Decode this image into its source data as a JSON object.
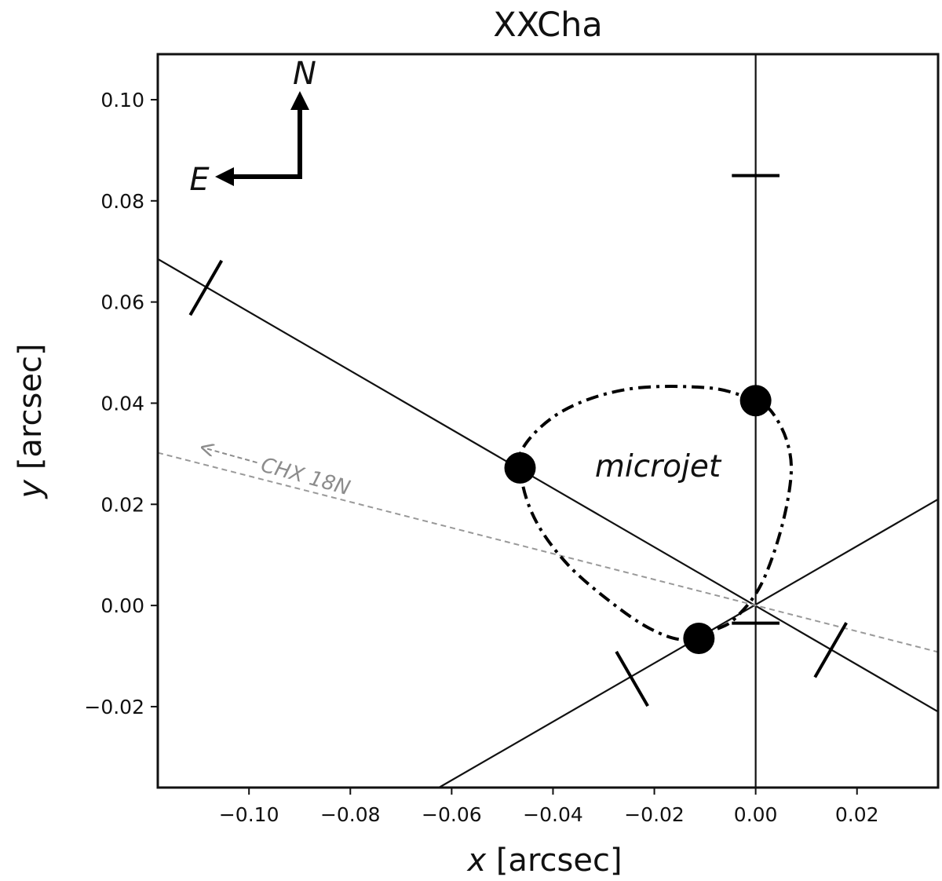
{
  "chart_data": {
    "type": "scatter",
    "title": "XXCha",
    "xlabel_var": "x",
    "xlabel_unit": "[arcsec]",
    "ylabel_var": "y",
    "ylabel_unit": "[arcsec]",
    "xlim": [
      -0.118,
      0.036
    ],
    "ylim": [
      -0.036,
      0.109
    ],
    "x_ticks": [
      -0.1,
      -0.08,
      -0.06,
      -0.04,
      -0.02,
      0.0,
      0.02
    ],
    "x_tick_labels": [
      "−0.10",
      "−0.08",
      "−0.06",
      "−0.04",
      "−0.02",
      "0.00",
      "0.02"
    ],
    "y_ticks": [
      -0.02,
      0.0,
      0.02,
      0.04,
      0.06,
      0.08,
      0.1
    ],
    "y_tick_labels": [
      "−0.02",
      "0.00",
      "0.02",
      "0.04",
      "0.06",
      "0.08",
      "0.10"
    ],
    "grid": false,
    "points": [
      {
        "x": 0.0,
        "y": 0.0405
      },
      {
        "x": -0.0465,
        "y": 0.0272
      },
      {
        "x": -0.0112,
        "y": -0.0065
      }
    ],
    "loop_path": [
      [
        0.0,
        0.0405
      ],
      [
        -0.009,
        0.043
      ],
      [
        -0.025,
        0.0428
      ],
      [
        -0.038,
        0.0385
      ],
      [
        -0.046,
        0.031
      ],
      [
        -0.046,
        0.024
      ],
      [
        -0.043,
        0.016
      ],
      [
        -0.037,
        0.008
      ],
      [
        -0.029,
        0.001
      ],
      [
        -0.021,
        -0.0045
      ],
      [
        -0.014,
        -0.0068
      ],
      [
        -0.008,
        -0.0048
      ],
      [
        -0.004,
        -0.0025
      ],
      [
        0.001,
        0.004
      ],
      [
        0.005,
        0.015
      ],
      [
        0.007,
        0.026
      ],
      [
        0.006,
        0.033
      ],
      [
        0.003,
        0.0385
      ],
      [
        0.0,
        0.0405
      ]
    ],
    "loop_label": "microjet",
    "lines": [
      {
        "p1": [
          -0.118,
          0.0685
        ],
        "p2": [
          0.036,
          -0.021
        ],
        "color": "#111111",
        "style": "solid"
      },
      {
        "p1": [
          -0.0625,
          -0.036
        ],
        "p2": [
          0.036,
          0.021
        ],
        "color": "#111111",
        "style": "solid"
      },
      {
        "p1": [
          0.0,
          -0.036
        ],
        "p2": [
          0.0,
          0.109
        ],
        "color": "#111111",
        "style": "solid"
      },
      {
        "p1": [
          -0.118,
          0.0302
        ],
        "p2": [
          0.036,
          -0.0092
        ],
        "color": "#999999",
        "style": "dashed"
      }
    ],
    "line_ticks": [
      {
        "center": [
          -0.1085,
          0.0628
        ],
        "angle_deg": 60,
        "len": 0.0062
      },
      {
        "center": [
          0.0148,
          -0.0088
        ],
        "angle_deg": 60,
        "len": 0.0062
      },
      {
        "center": [
          -0.0244,
          -0.0145
        ],
        "angle_deg": -60,
        "len": 0.0062
      },
      {
        "center": [
          0.0,
          0.085
        ],
        "angle_deg": 0,
        "len": 0.0047
      },
      {
        "center": [
          0.0,
          -0.0035
        ],
        "angle_deg": 0,
        "len": 0.0047
      }
    ],
    "chx_label": "CHX 18N",
    "compass": {
      "north_label": "N",
      "east_label": "E"
    },
    "colors": {
      "points": "#000000",
      "axes": "#111111",
      "dashed_line": "#999999"
    }
  }
}
